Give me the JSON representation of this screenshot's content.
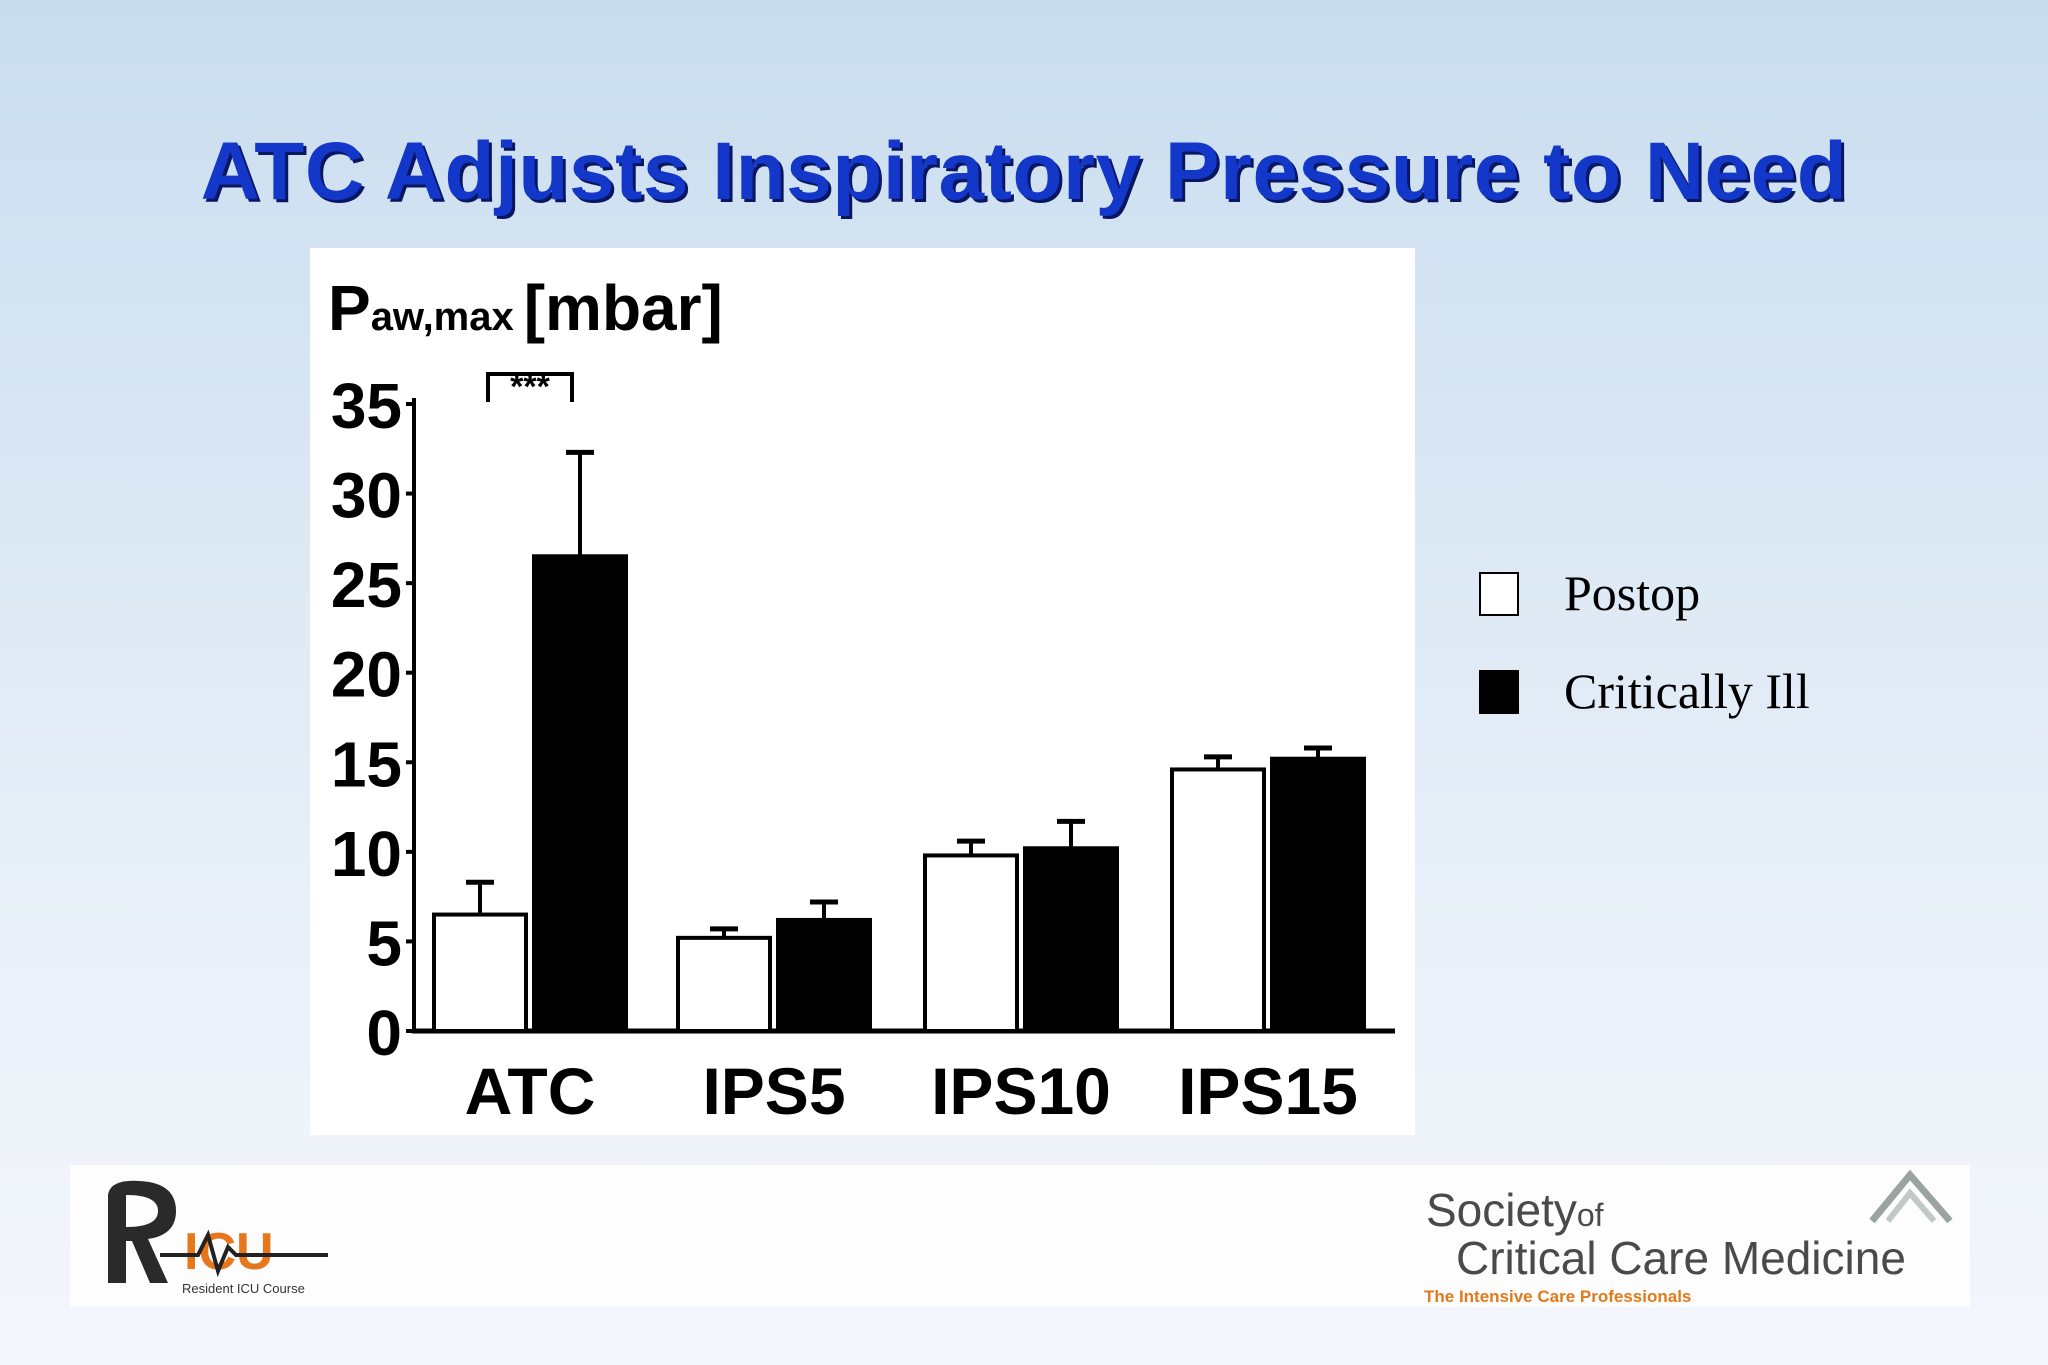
{
  "slide": {
    "title": "ATC Adjusts Inspiratory Pressure to Need"
  },
  "chart_data": {
    "type": "bar",
    "title": "",
    "ylabel_main": "P",
    "ylabel_sub": "aw,max",
    "ylabel_unit": "[mbar]",
    "xlabel": "",
    "categories": [
      "ATC",
      "IPS5",
      "IPS10",
      "IPS15"
    ],
    "ylim": [
      0,
      35
    ],
    "yticks": [
      0,
      5,
      10,
      15,
      20,
      25,
      30,
      35
    ],
    "series": [
      {
        "name": "Postop",
        "values": [
          6.5,
          5.2,
          9.8,
          14.6
        ],
        "errors": [
          1.8,
          0.5,
          0.8,
          0.7
        ],
        "color": "#ffffff"
      },
      {
        "name": "Critically Ill",
        "values": [
          26.5,
          6.2,
          10.2,
          15.2
        ],
        "errors": [
          5.8,
          1.0,
          1.5,
          0.6
        ],
        "color": "#000000"
      }
    ],
    "annotations": [
      {
        "category": "ATC",
        "text": "***"
      }
    ],
    "grid": false,
    "legend_position": "right"
  },
  "legend": {
    "items": [
      {
        "label": "Postop",
        "color": "#ffffff"
      },
      {
        "label": "Critically Ill",
        "color": "#000000"
      }
    ]
  },
  "logos": {
    "ricu": {
      "caption": "Resident ICU Course"
    },
    "sccm": {
      "line1": "Society",
      "of": "of",
      "line2": "Critical Care Medicine",
      "tagline": "The Intensive Care Professionals"
    }
  },
  "colors": {
    "title": "#1237c9",
    "title_shadow": "#0a1660",
    "ricu_orange": "#e8761a",
    "sccm_orange": "#e07a1a"
  }
}
